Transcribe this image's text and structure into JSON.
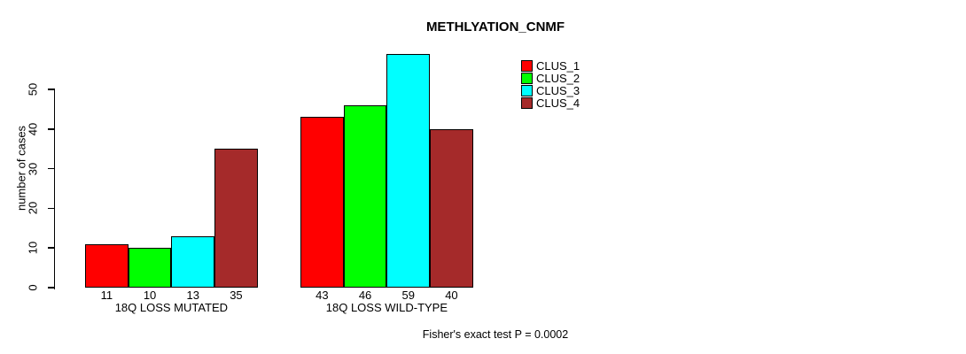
{
  "chart_data": {
    "type": "bar",
    "title": "METHLYATION_CNMF",
    "ylabel": "number of cases",
    "xlabel": "",
    "categories": [
      "18Q LOSS MUTATED",
      "18Q LOSS WILD-TYPE"
    ],
    "series": [
      {
        "name": "CLUS_1",
        "color": "#FF0000",
        "values": [
          11,
          43
        ]
      },
      {
        "name": "CLUS_2",
        "color": "#00FF00",
        "values": [
          10,
          46
        ]
      },
      {
        "name": "CLUS_3",
        "color": "#00FFFF",
        "values": [
          13,
          59
        ]
      },
      {
        "name": "CLUS_4",
        "color": "#A52A2A",
        "values": [
          35,
          40
        ]
      }
    ],
    "yticks": [
      0,
      10,
      20,
      30,
      40,
      50
    ],
    "ylim": [
      0,
      59
    ],
    "grid": false,
    "bar_values_shown": true,
    "legend_position": "top-right",
    "annotation": "Fisher's exact test P = 0.0002"
  }
}
